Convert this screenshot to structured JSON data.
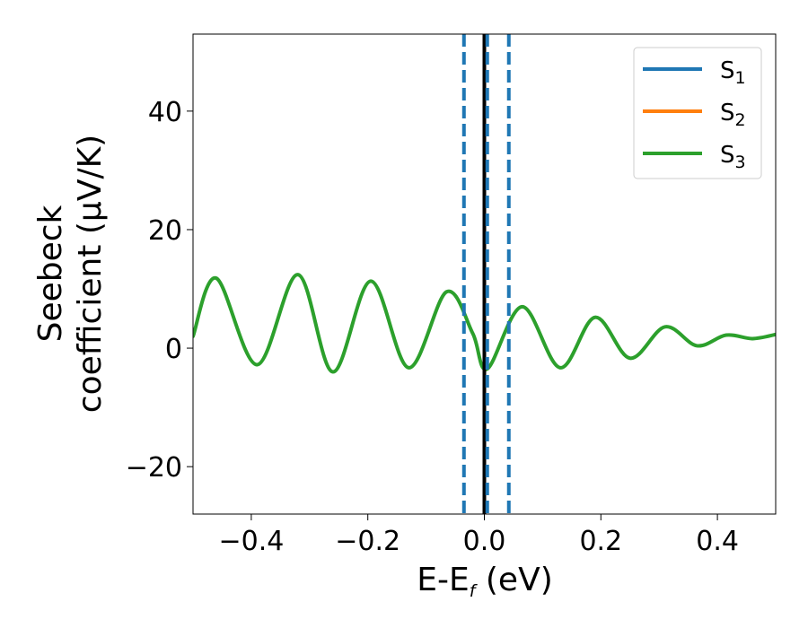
{
  "chart_data": {
    "type": "line",
    "xlabel_main": "E-E",
    "xlabel_sub": "f",
    "xlabel_unit": " (eV)",
    "ylabel_line1": "Seebeck",
    "ylabel_line2": "coefficient  (μV/K)",
    "xlim": [
      -0.5,
      0.5
    ],
    "ylim": [
      -28,
      53
    ],
    "xticks": [
      -0.4,
      -0.2,
      0.0,
      0.2,
      0.4
    ],
    "xtick_labels": [
      "−0.4",
      "−0.2",
      "0.0",
      "0.2",
      "0.4"
    ],
    "yticks": [
      -20,
      0,
      20,
      40
    ],
    "ytick_labels": [
      "−20",
      "0",
      "20",
      "40"
    ],
    "grid": false,
    "legend": {
      "placement": "top-right",
      "entries": [
        {
          "label": "S",
          "sub": "1",
          "color": "#1f77b4"
        },
        {
          "label": "S",
          "sub": "2",
          "color": "#ff7f0e"
        },
        {
          "label": "S",
          "sub": "3",
          "color": "#2ca02c"
        }
      ]
    },
    "vlines": [
      {
        "x": 0.0,
        "color": "#000000",
        "style": "solid"
      },
      {
        "x": -0.035,
        "color": "#1f77b4",
        "style": "dashed"
      },
      {
        "x": 0.005,
        "color": "#1f77b4",
        "style": "dashed"
      },
      {
        "x": 0.042,
        "color": "#1f77b4",
        "style": "dashed"
      }
    ],
    "series": [
      {
        "name": "S3",
        "color": "#2ca02c",
        "x": [
          -0.5,
          -0.46,
          -0.39,
          -0.32,
          -0.26,
          -0.195,
          -0.13,
          -0.065,
          -0.02,
          0.005,
          0.065,
          0.13,
          0.19,
          0.25,
          0.31,
          0.365,
          0.415,
          0.46,
          0.5
        ],
        "y": [
          2.0,
          11.8,
          -2.8,
          12.4,
          -4.0,
          11.3,
          -3.3,
          9.5,
          2.5,
          -3.5,
          7.0,
          -3.3,
          5.2,
          -1.7,
          3.6,
          0.4,
          2.2,
          1.6,
          2.3
        ]
      }
    ]
  }
}
